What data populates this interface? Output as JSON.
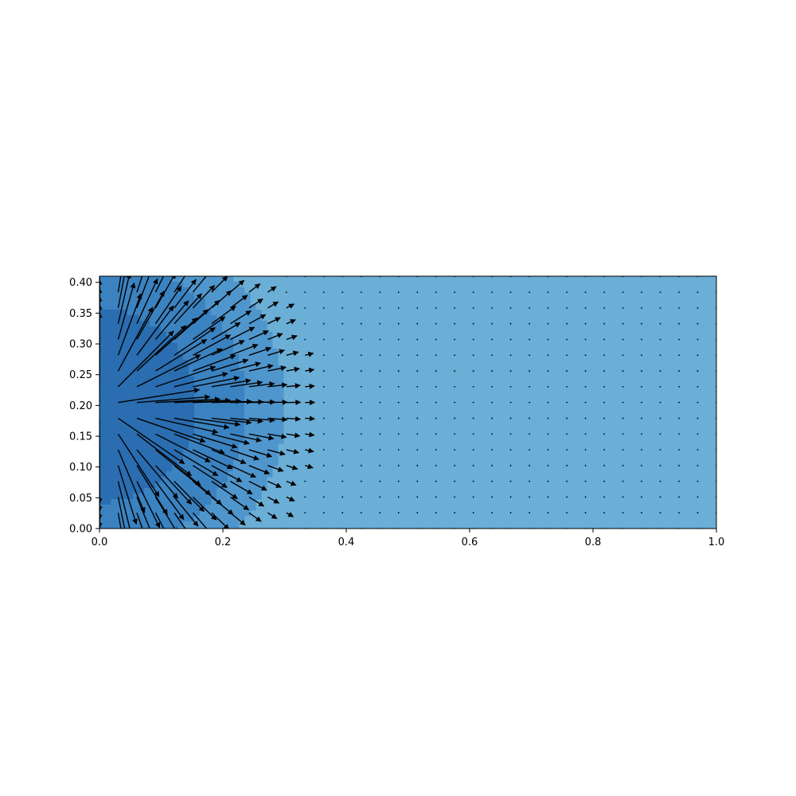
{
  "chart_data": {
    "type": "quiver",
    "title": "",
    "xlabel": "",
    "ylabel": "",
    "xlim": [
      0,
      1.0
    ],
    "ylim": [
      0,
      0.41
    ],
    "x_ticks": [
      "0.0",
      "0.2",
      "0.4",
      "0.6",
      "0.8",
      "1.0"
    ],
    "x_tick_values": [
      0,
      0.2,
      0.4,
      0.6,
      0.8,
      1.0
    ],
    "y_ticks": [
      "0.00",
      "0.05",
      "0.10",
      "0.15",
      "0.20",
      "0.25",
      "0.30",
      "0.35",
      "0.40"
    ],
    "y_tick_values": [
      0,
      0.05,
      0.1,
      0.15,
      0.2,
      0.25,
      0.3,
      0.35,
      0.4
    ],
    "grid": false,
    "legend": "none",
    "colormap": "Blues",
    "colors": {
      "background_field": "#6baed6",
      "mid_field": "#4f96cc",
      "strong_field": "#3b82c0",
      "core_field": "#2a6db0",
      "arrow": "#000000"
    },
    "source": {
      "x": 0.0,
      "y": 0.2,
      "radius": 0.35
    },
    "arrow_grid": {
      "nx": 34,
      "ny": 17,
      "dx": 0.0303,
      "dy": 0.0256
    }
  }
}
